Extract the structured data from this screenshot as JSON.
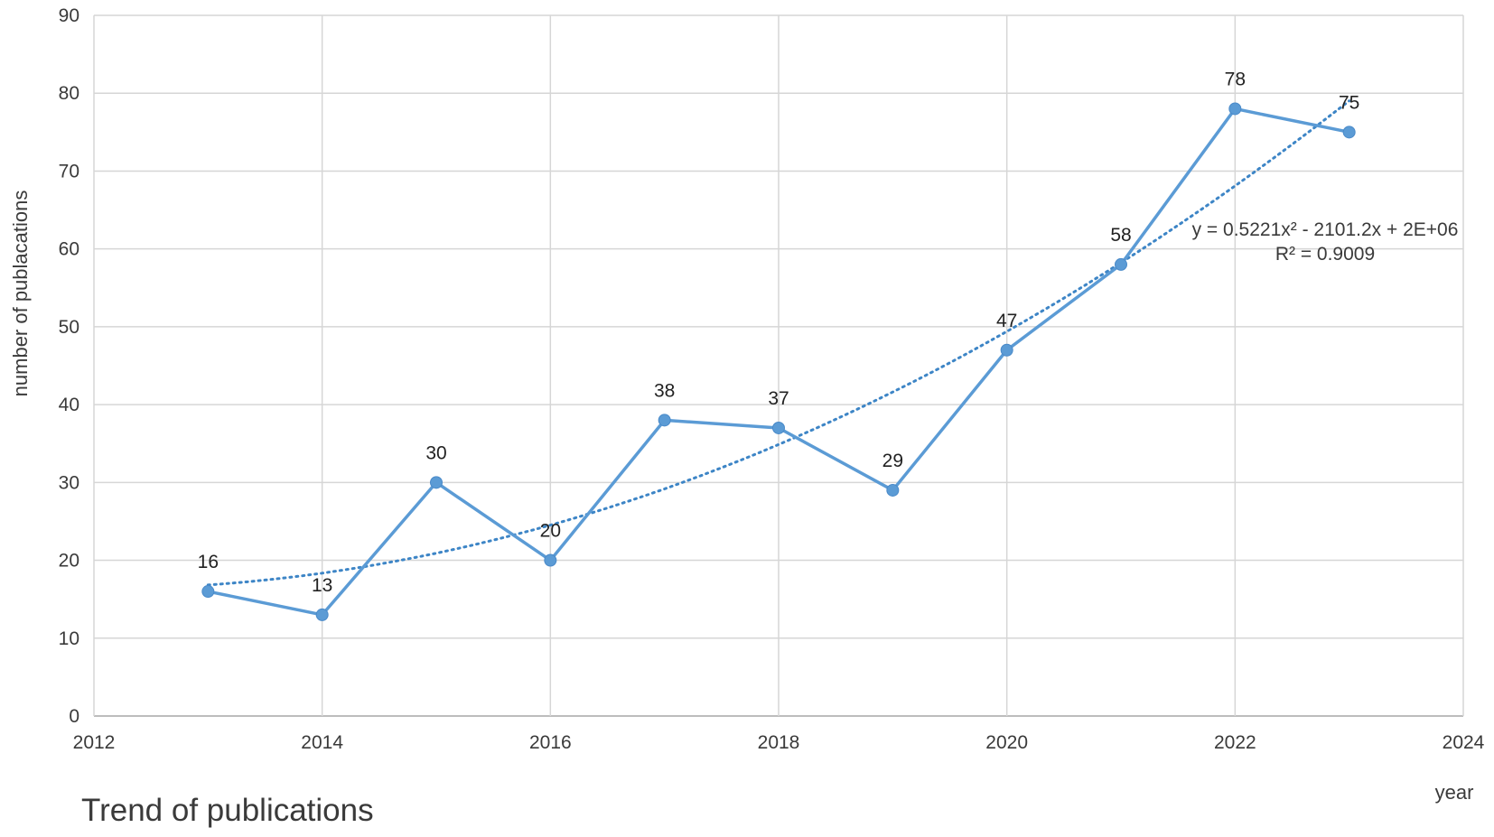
{
  "chart_data": {
    "type": "line",
    "title": "Trend of publications",
    "xlabel": "year",
    "ylabel": "number of publacations",
    "xlim": [
      2012,
      2024
    ],
    "ylim": [
      0,
      90
    ],
    "x_ticks": [
      2012,
      2014,
      2016,
      2018,
      2020,
      2022,
      2024
    ],
    "y_ticks": [
      0,
      10,
      20,
      30,
      40,
      50,
      60,
      70,
      80,
      90
    ],
    "grid": true,
    "series": [
      {
        "x": [
          2013,
          2014,
          2015,
          2016,
          2017,
          2018,
          2019,
          2020,
          2021,
          2022,
          2023
        ],
        "values": [
          16,
          13,
          30,
          20,
          38,
          37,
          29,
          47,
          58,
          78,
          75
        ],
        "color": "#5b9bd5",
        "data_labels": [
          "16",
          "13",
          "30",
          "20",
          "38",
          "37",
          "29",
          "47",
          "58",
          "78",
          "75"
        ]
      }
    ],
    "trendline": {
      "type": "polynomial",
      "order": 2,
      "style": "dotted",
      "color": "#3d85c6",
      "equation": "y = 0.5221x² - 2101.2x + 2E+06",
      "r_squared": "R² = 0.9009"
    }
  }
}
